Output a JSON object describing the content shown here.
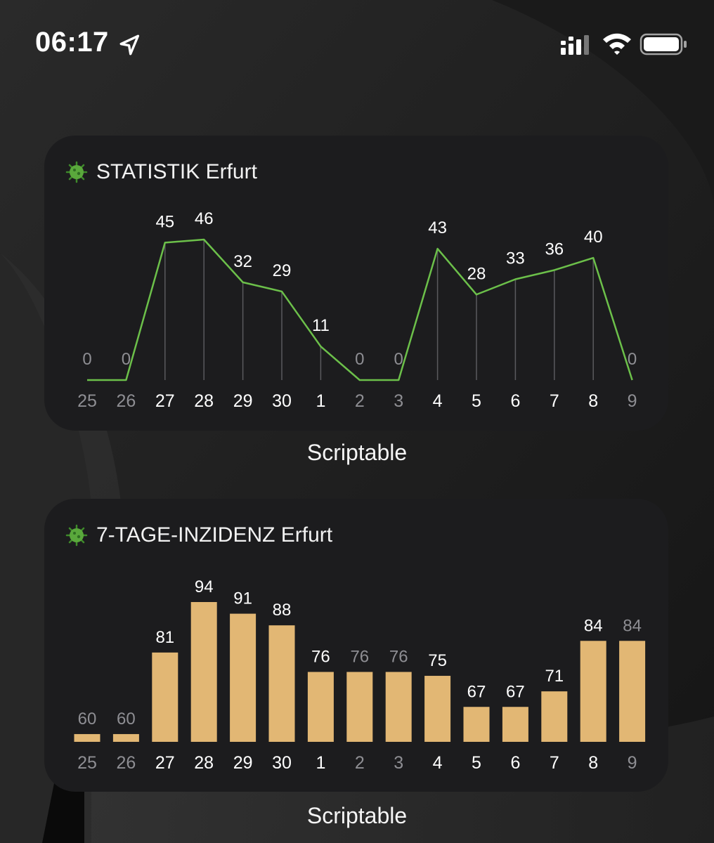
{
  "status_bar": {
    "time": "06:17",
    "icons": [
      "location-arrow-icon",
      "signal-icon",
      "wifi-icon",
      "battery-icon"
    ]
  },
  "widgets": [
    {
      "icon": "virus-icon",
      "title": "STATISTIK Erfurt",
      "app_label": "Scriptable"
    },
    {
      "icon": "virus-icon",
      "title": "7-TAGE-INZIDENZ Erfurt",
      "app_label": "Scriptable"
    }
  ],
  "chart_data": [
    {
      "type": "line",
      "title": "STATISTIK Erfurt",
      "categories": [
        "25",
        "26",
        "27",
        "28",
        "29",
        "30",
        "1",
        "2",
        "3",
        "4",
        "5",
        "6",
        "7",
        "8",
        "9"
      ],
      "values": [
        0,
        0,
        45,
        46,
        32,
        29,
        11,
        0,
        0,
        43,
        28,
        33,
        36,
        40,
        0
      ],
      "dimmed": [
        true,
        true,
        false,
        false,
        false,
        false,
        false,
        true,
        true,
        false,
        false,
        false,
        false,
        false,
        true
      ],
      "line_color": "#6cc04a",
      "ylim": [
        0,
        46
      ]
    },
    {
      "type": "bar",
      "title": "7-TAGE-INZIDENZ Erfurt",
      "categories": [
        "25",
        "26",
        "27",
        "28",
        "29",
        "30",
        "1",
        "2",
        "3",
        "4",
        "5",
        "6",
        "7",
        "8",
        "9"
      ],
      "values": [
        60,
        60,
        81,
        94,
        91,
        88,
        76,
        76,
        76,
        75,
        67,
        67,
        71,
        84,
        84
      ],
      "dimmed": [
        true,
        true,
        false,
        false,
        false,
        false,
        false,
        true,
        true,
        false,
        false,
        false,
        false,
        false,
        true
      ],
      "bar_color": "#e2b774",
      "ylim": [
        58,
        94
      ]
    }
  ],
  "colors": {
    "text_active": "#ffffff",
    "text_dimmed": "#8e8e93",
    "widget_bg": "#1c1c1e"
  }
}
